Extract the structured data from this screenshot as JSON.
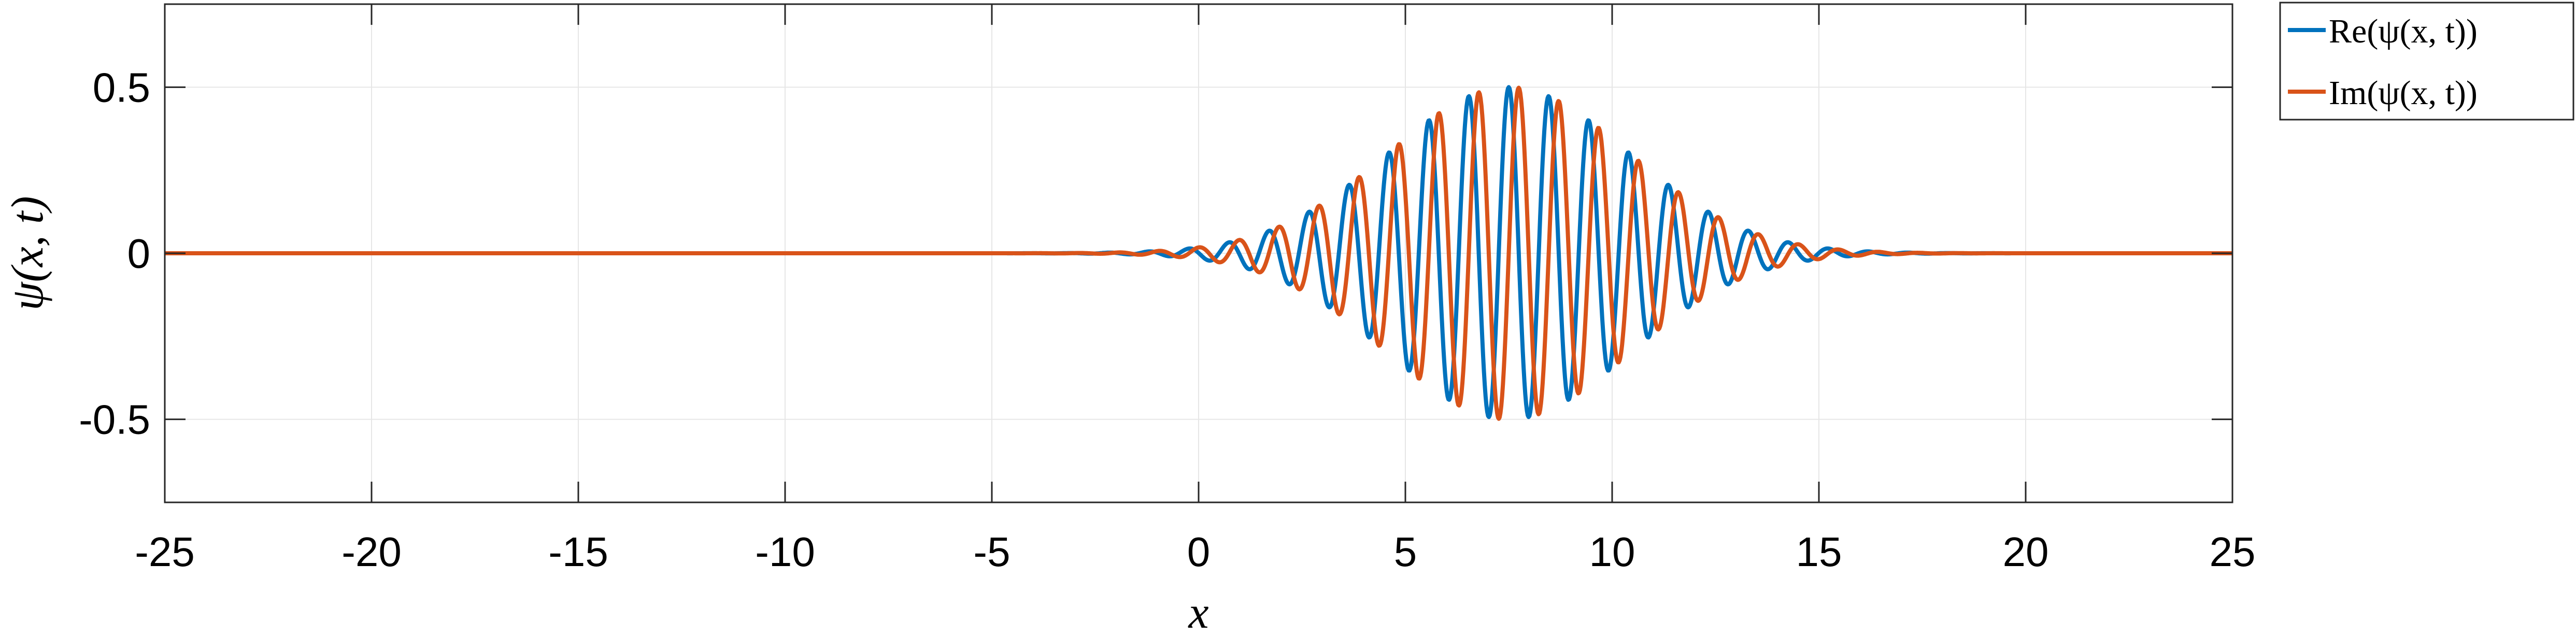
{
  "chart_data": {
    "type": "line",
    "title": "",
    "xlabel": "x",
    "ylabel": "ψ(x, t)",
    "xlim": [
      -25,
      25
    ],
    "ylim": [
      -0.75,
      0.75
    ],
    "xticks": [
      -25,
      -20,
      -15,
      -10,
      -5,
      0,
      5,
      10,
      15,
      20,
      25
    ],
    "xtick_labels": [
      "-25",
      "-20",
      "-15",
      "-10",
      "-5",
      "0",
      "5",
      "10",
      "15",
      "20",
      "25"
    ],
    "yticks": [
      -0.5,
      0,
      0.5
    ],
    "ytick_labels": [
      "-0.5",
      "0",
      "0.5"
    ],
    "grid": true,
    "legend_position": "outside-top-right",
    "wave_packet": {
      "center": 7.5,
      "amplitude": 0.5,
      "envelope_sigma": 2.9,
      "wavenumber": 6.5,
      "sample_step": 0.02
    },
    "series": [
      {
        "name": "Re(ψ(x, t))",
        "component": "real",
        "color": "#0072BD"
      },
      {
        "name": "Im(ψ(x, t))",
        "component": "imag",
        "color": "#D95319"
      }
    ]
  }
}
